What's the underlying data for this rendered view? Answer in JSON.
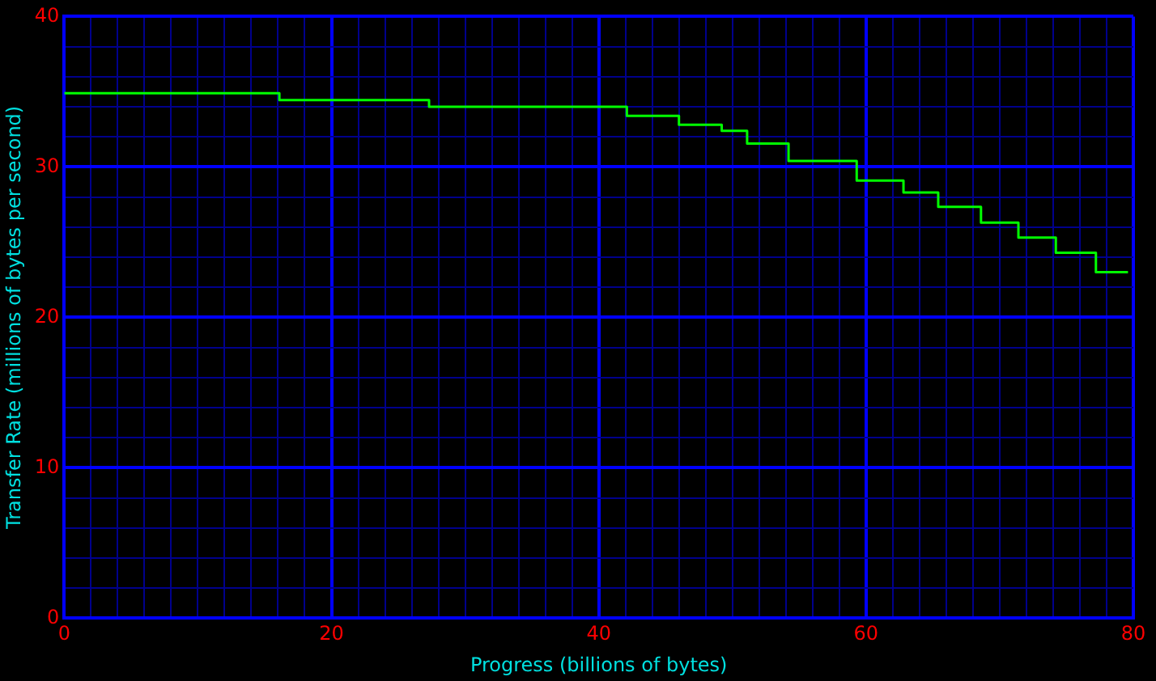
{
  "chart_data": {
    "type": "step",
    "xlabel": "Progress (billions of bytes)",
    "ylabel": "Transfer Rate (millions of bytes per second)",
    "x": [
      0,
      16.1,
      27.3,
      42.1,
      46.0,
      49.2,
      51.1,
      54.2,
      59.3,
      62.8,
      65.4,
      68.6,
      71.4,
      74.2,
      77.2,
      79.6
    ],
    "series": [
      {
        "color": "#00ff00",
        "values": [
          34.9,
          34.45,
          34.0,
          33.4,
          32.8,
          32.4,
          31.55,
          30.4,
          29.1,
          28.3,
          27.35,
          26.3,
          25.3,
          24.3,
          23.0,
          23.0
        ]
      }
    ],
    "xlim": [
      0,
      80
    ],
    "ylim": [
      0,
      40
    ],
    "xticks": [
      0,
      {
        "value": 2,
        "label": null
      },
      {
        "value": 4,
        "label": null
      },
      {
        "value": 6,
        "label": null
      },
      {
        "value": 8,
        "label": null
      },
      {
        "value": 10,
        "label": null
      },
      {
        "value": 12,
        "label": null
      },
      {
        "value": 14,
        "label": null
      },
      {
        "value": 16,
        "label": null
      },
      {
        "value": 18,
        "label": null
      },
      20,
      {
        "value": 22,
        "label": null
      },
      {
        "value": 24,
        "label": null
      },
      {
        "value": 26,
        "label": null
      },
      {
        "value": 28,
        "label": null
      },
      {
        "value": 30,
        "label": null
      },
      {
        "value": 32,
        "label": null
      },
      {
        "value": 34,
        "label": null
      },
      {
        "value": 36,
        "label": null
      },
      {
        "value": 38,
        "label": null
      },
      40,
      {
        "value": 42,
        "label": null
      },
      {
        "value": 44,
        "label": null
      },
      {
        "value": 46,
        "label": null
      },
      {
        "value": 48,
        "label": null
      },
      {
        "value": 50,
        "label": null
      },
      {
        "value": 52,
        "label": null
      },
      {
        "value": 54,
        "label": null
      },
      {
        "value": 56,
        "label": null
      },
      {
        "value": 58,
        "label": null
      },
      60,
      {
        "value": 62,
        "label": null
      },
      {
        "value": 64,
        "label": null
      },
      {
        "value": 66,
        "label": null
      },
      {
        "value": 68,
        "label": null
      },
      {
        "value": 70,
        "label": null
      },
      {
        "value": 72,
        "label": null
      },
      {
        "value": 74,
        "label": null
      },
      {
        "value": 76,
        "label": null
      },
      {
        "value": 78,
        "label": null
      },
      80
    ],
    "yticks": [
      0,
      {
        "value": 2,
        "label": null
      },
      {
        "value": 4,
        "label": null
      },
      {
        "value": 6,
        "label": null
      },
      {
        "value": 8,
        "label": null
      },
      10,
      {
        "value": 12,
        "label": null
      },
      {
        "value": 14,
        "label": null
      },
      {
        "value": 16,
        "label": null
      },
      {
        "value": 18,
        "label": null
      },
      20,
      {
        "value": 22,
        "label": null
      },
      {
        "value": 24,
        "label": null
      },
      {
        "value": 26,
        "label": null
      },
      {
        "value": 28,
        "label": null
      },
      30,
      {
        "value": 32,
        "label": null
      },
      {
        "value": 34,
        "label": null
      },
      {
        "value": 36,
        "label": null
      },
      {
        "value": 38,
        "label": null
      },
      40
    ],
    "grid": true,
    "marker": "none",
    "legend": false
  }
}
